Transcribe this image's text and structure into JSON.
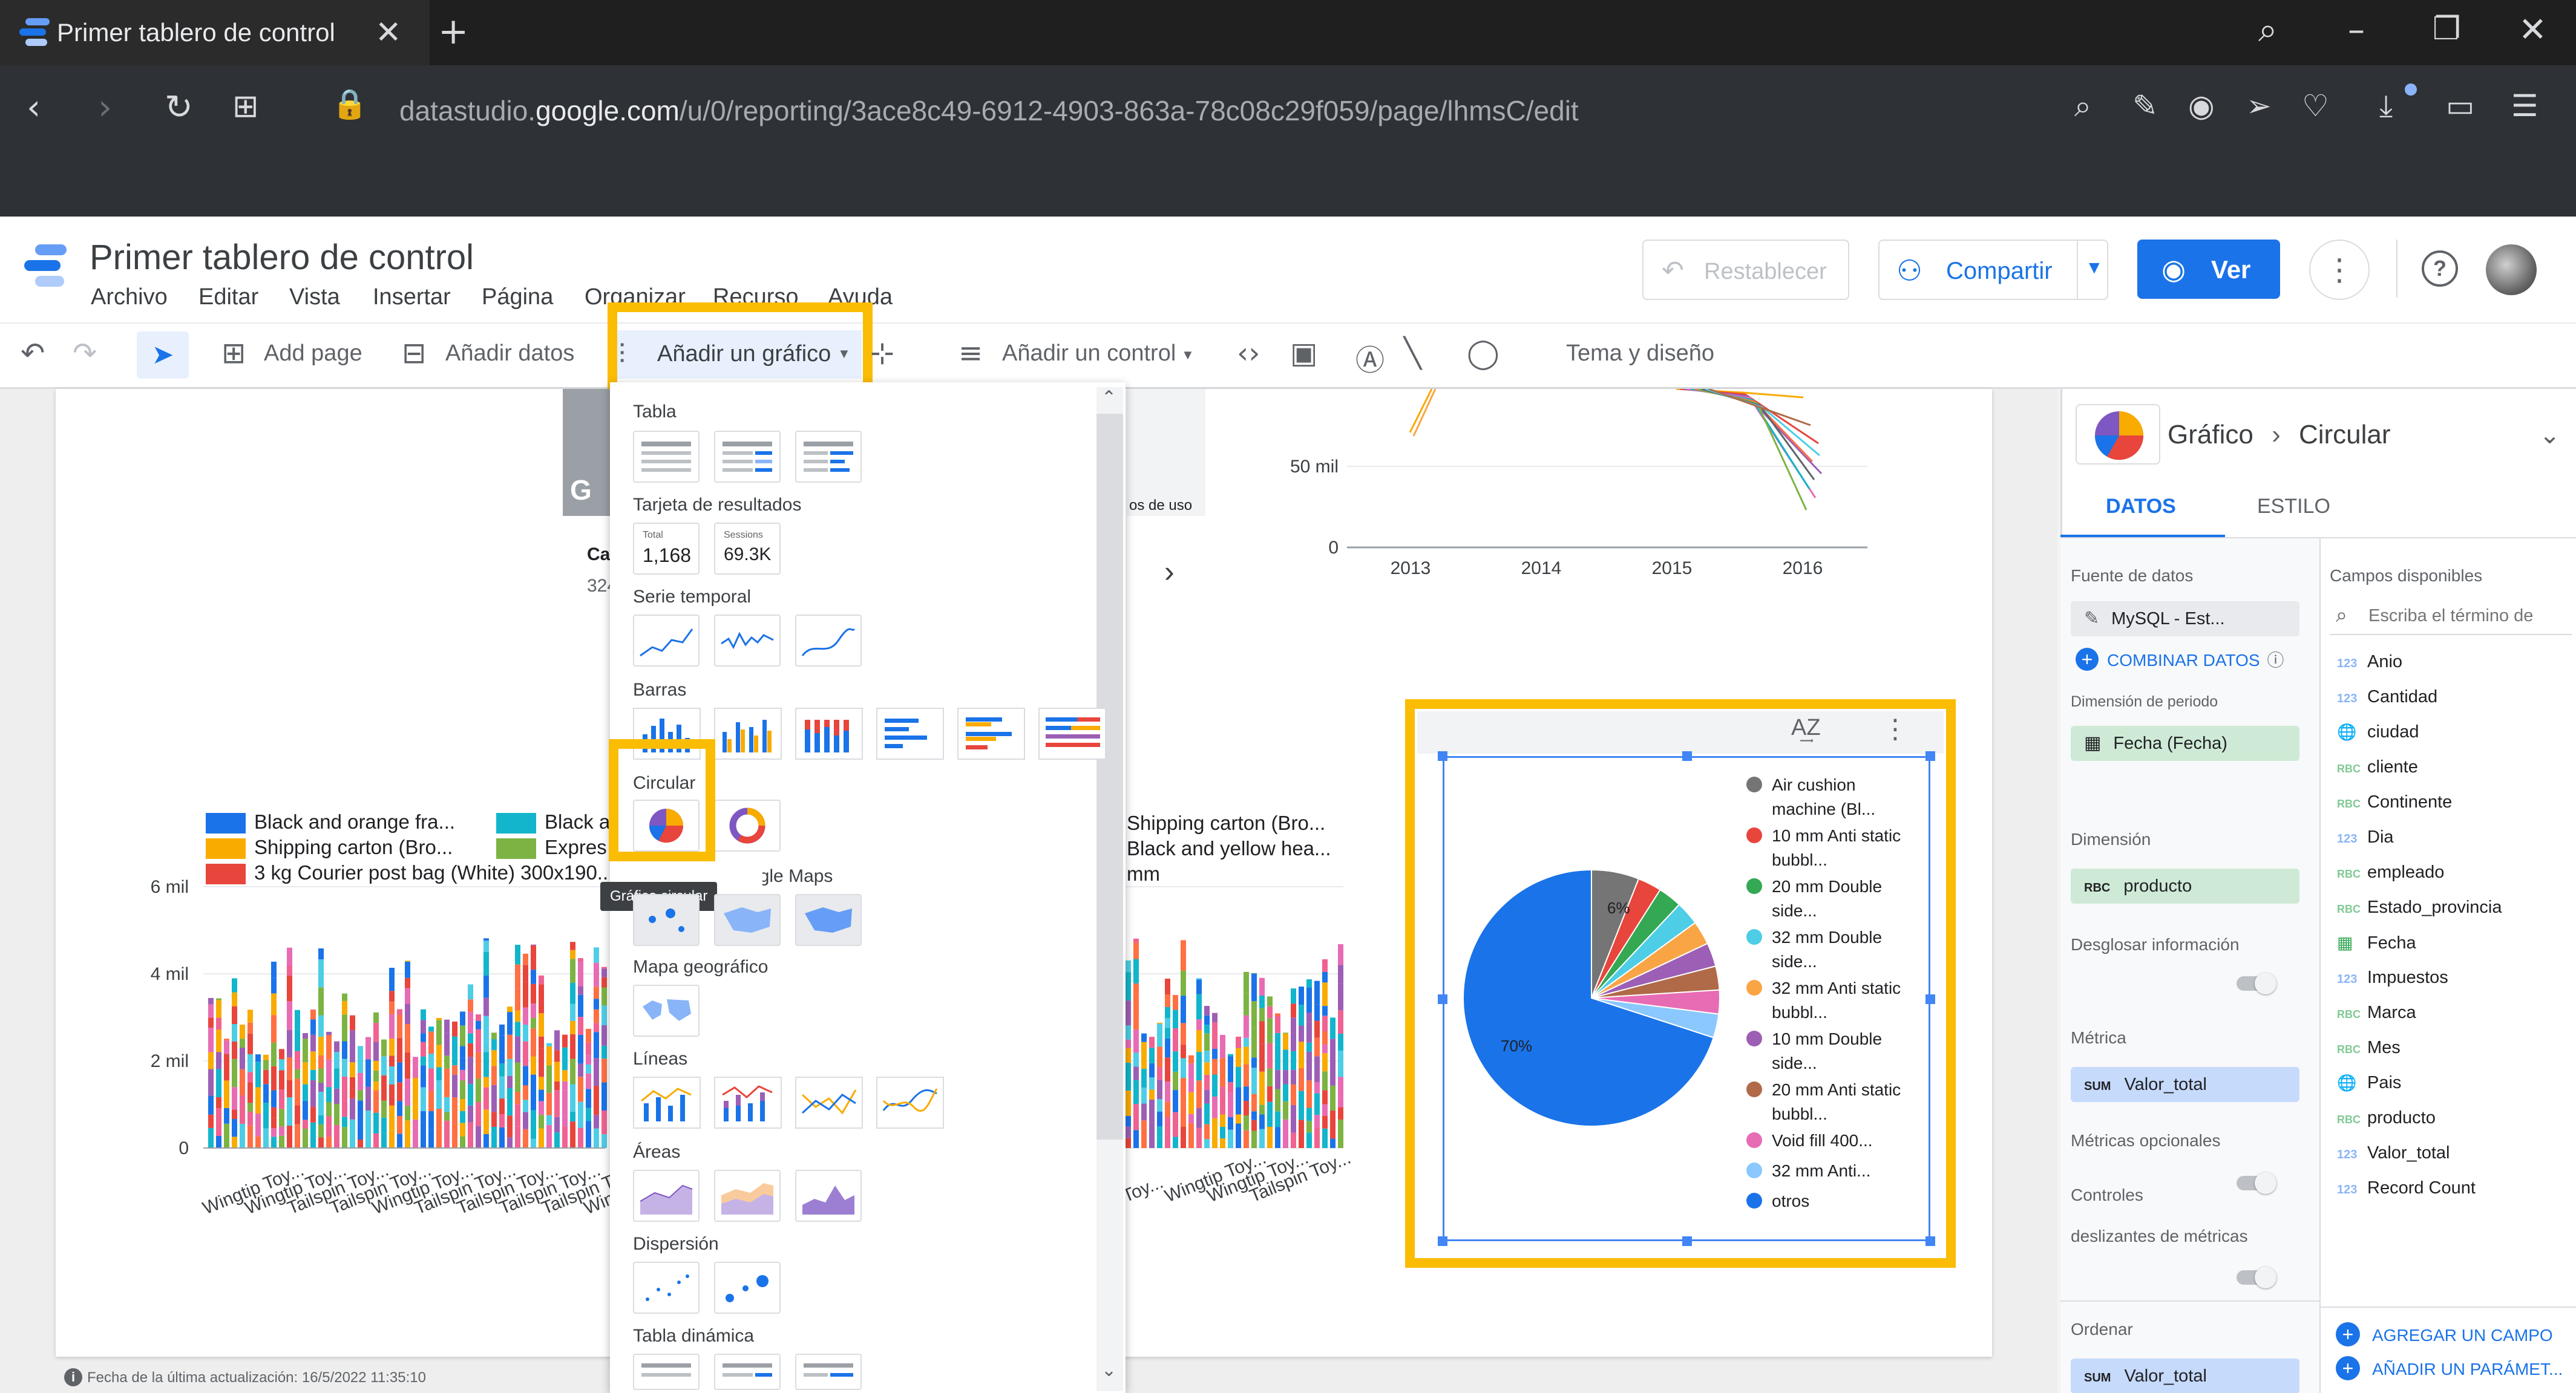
{
  "browser": {
    "tab_title": "Primer tablero de control",
    "url_prefix": "datastudio.",
    "url_domain": "google.com",
    "url_path": "/u/0/reporting/3ace8c49-6912-4903-863a-78c08c29f059/page/lhmsC/edit"
  },
  "app": {
    "report_title": "Primer tablero de control",
    "menu": [
      "Archivo",
      "Editar",
      "Vista",
      "Insertar",
      "Página",
      "Organizar",
      "Recurso",
      "Ayuda"
    ],
    "reset_label": "Restablecer",
    "share_label": "Compartir",
    "view_label": "Ver"
  },
  "toolbar": {
    "add_page": "Add page",
    "add_data": "Añadir datos",
    "add_chart": "Añadir un gráfico",
    "add_control": "Añadir un control",
    "theme": "Tema y diseño"
  },
  "dropdown": {
    "sections": {
      "tabla": "Tabla",
      "scorecard": "Tarjeta de resultados",
      "timeseries": "Serie temporal",
      "bars": "Barras",
      "pie": "Circular",
      "geo": "Mapa geográfico",
      "lines": "Líneas",
      "areas": "Áreas",
      "scatter": "Dispersión",
      "pivot": "Tabla dinámica"
    },
    "scorecard_a_label": "Total",
    "scorecard_a_value": "1,168",
    "scorecard_b_label": "Sessions",
    "scorecard_b_value": "69.3K",
    "tooltip": "Gráfico circular",
    "google_maps_partial": "Google Maps"
  },
  "panel": {
    "breadcrumb_a": "Gráfico",
    "breadcrumb_b": "Circular",
    "tab_data": "DATOS",
    "tab_style": "ESTILO",
    "data_source_label": "Fuente de datos",
    "data_source_value": "MySQL - Est...",
    "blend_label": "COMBINAR DATOS",
    "period_label": "Dimensión de periodo",
    "period_value": "Fecha (Fecha)",
    "dimension_label": "Dimensión",
    "dimension_value": "producto",
    "drill_label": "Desglosar información",
    "metric_label": "Métrica",
    "metric_value": "Valor_total",
    "optional_metrics_label": "Métricas opcionales",
    "slider_label_a": "Controles",
    "slider_label_b": "deslizantes de métricas",
    "sort_label": "Ordenar",
    "sort_value": "Valor_total",
    "available_fields_label": "Campos disponibles",
    "search_placeholder": "Escriba el término de",
    "fields": [
      {
        "type": "123",
        "name": "Anio"
      },
      {
        "type": "123",
        "name": "Cantidad"
      },
      {
        "type": "geo",
        "name": "ciudad"
      },
      {
        "type": "RBC",
        "name": "cliente"
      },
      {
        "type": "RBC",
        "name": "Continente"
      },
      {
        "type": "123",
        "name": "Dia"
      },
      {
        "type": "RBC",
        "name": "empleado"
      },
      {
        "type": "RBC",
        "name": "Estado_provincia"
      },
      {
        "type": "date",
        "name": "Fecha"
      },
      {
        "type": "123",
        "name": "Impuestos"
      },
      {
        "type": "RBC",
        "name": "Marca"
      },
      {
        "type": "RBC",
        "name": "Mes"
      },
      {
        "type": "geo",
        "name": "Pais"
      },
      {
        "type": "RBC",
        "name": "producto"
      },
      {
        "type": "123",
        "name": "Valor_total"
      },
      {
        "type": "123",
        "name": "Record Count"
      }
    ],
    "add_field": "AGREGAR UN CAMPO",
    "add_param": "AÑADIR UN PARÁMET..."
  },
  "canvas": {
    "footer": "Fecha de la última actualización: 16/5/2022 11:35:10",
    "partial_label_a": "Ca",
    "partial_label_b": "324",
    "partial_label_c": "os de uso",
    "legend_left": [
      {
        "text": "Black and orange fra...",
        "color": "#1a73e8"
      },
      {
        "text": "Black a",
        "color": "#12b5cb"
      },
      {
        "text": "Shipping carton (Bro...",
        "color": "#f9ab00"
      },
      {
        "text": "Expres",
        "color": "#7cb342"
      },
      {
        "text": "3 kg Courier post bag (White) 300x190...",
        "color": "#e8453c"
      }
    ],
    "legend_right": [
      "Shipping carton (Bro...",
      "Black and yellow hea...",
      "mm"
    ],
    "bar_yticks": [
      "6 mil",
      "4 mil",
      "2 mil",
      "0"
    ],
    "bar_xticks": [
      "Wingtip Toy...",
      "Wingtip Toy...",
      "Tailspin Toy...",
      "Tailspin Toy...",
      "Wingtip Toy...",
      "Tailspin Toy...",
      "Tailspin Toy...",
      "Tailspin Toy...",
      "Tailspin Toy...",
      "Wingtip Toy..."
    ],
    "bar_xticks_right": [
      "Toy...",
      "Wingtip Toy...",
      "Wingtip Toy...",
      "Tailspin Toy..."
    ],
    "line_ytick_mid": "50 mil",
    "line_ytick_zero": "0",
    "line_xticks": [
      "2013",
      "2014",
      "2015",
      "2016"
    ]
  },
  "chart_data": {
    "type": "pie",
    "slices": [
      {
        "label": "Air cushion machine (Bl...",
        "value": 6,
        "color": "#757575"
      },
      {
        "label": "10 mm Anti static bubbl...",
        "value": 3,
        "color": "#e8453c"
      },
      {
        "label": "20 mm Double side...",
        "value": 3,
        "color": "#34a853"
      },
      {
        "label": "32 mm Double side...",
        "value": 3,
        "color": "#4ecde6"
      },
      {
        "label": "32 mm Anti static bubbl...",
        "value": 3,
        "color": "#f9a545"
      },
      {
        "label": "10 mm Double side...",
        "value": 3,
        "color": "#9c5fb5"
      },
      {
        "label": "20 mm Anti static bubbl...",
        "value": 3,
        "color": "#b06a47"
      },
      {
        "label": "Void fill 400...",
        "value": 3,
        "color": "#e86cb4"
      },
      {
        "label": "32 mm Anti...",
        "value": 3,
        "color": "#8ac8ff"
      },
      {
        "label": "otros",
        "value": 70,
        "color": "#1a73e8"
      }
    ],
    "data_labels": [
      "6%",
      "70%"
    ],
    "legend_position": "right"
  }
}
